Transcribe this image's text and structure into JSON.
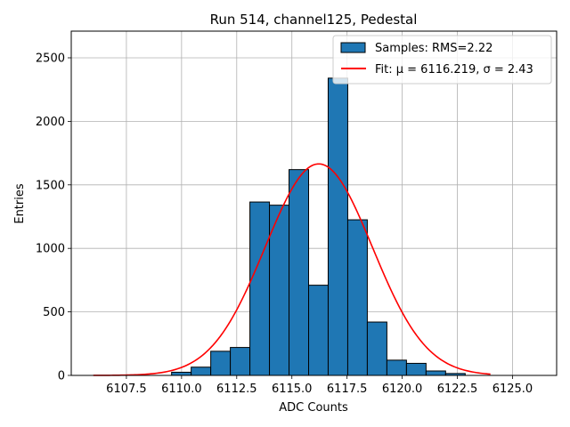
{
  "chart_data": {
    "type": "bar",
    "title": "Run 514, channel125, Pedestal",
    "xlabel": "ADC Counts",
    "ylabel": "Entries",
    "xlim": [
      6105.0,
      6127.0
    ],
    "ylim": [
      0,
      2710
    ],
    "x_ticks": [
      6107.5,
      6110.0,
      6112.5,
      6115.0,
      6117.5,
      6120.0,
      6122.5,
      6125.0
    ],
    "x_tick_labels": [
      "6107.5",
      "6110.0",
      "6112.5",
      "6115.0",
      "6117.5",
      "6120.0",
      "6122.5",
      "6125.0"
    ],
    "y_ticks": [
      0,
      500,
      1000,
      1500,
      2000,
      2500
    ],
    "y_tick_labels": [
      "0",
      "500",
      "1000",
      "1500",
      "2000",
      "2500"
    ],
    "grid": true,
    "legend_position": "top-right",
    "bar_color": "#1f77b4",
    "fit_color": "#ff0000",
    "bin_edges": [
      6106.0,
      6106.887,
      6107.774,
      6108.661,
      6109.548,
      6110.435,
      6111.323,
      6112.21,
      6113.097,
      6113.984,
      6114.871,
      6115.758,
      6116.645,
      6117.532,
      6118.419,
      6119.306,
      6120.194,
      6121.081,
      6121.968,
      6122.855,
      6123.742
    ],
    "values": [
      0,
      0,
      0,
      0,
      25,
      65,
      190,
      220,
      1365,
      1340,
      1620,
      710,
      2340,
      1225,
      420,
      120,
      95,
      35,
      15,
      0
    ],
    "series": [
      {
        "name": "Samples: RMS=2.22",
        "kind": "histogram"
      },
      {
        "name": "Fit: μ = 6116.219, σ = 2.43",
        "kind": "gaussian",
        "mu": 6116.219,
        "sigma": 2.43,
        "amplitude": 1665,
        "x_range": [
          6106.0,
          6124.0
        ]
      }
    ]
  }
}
